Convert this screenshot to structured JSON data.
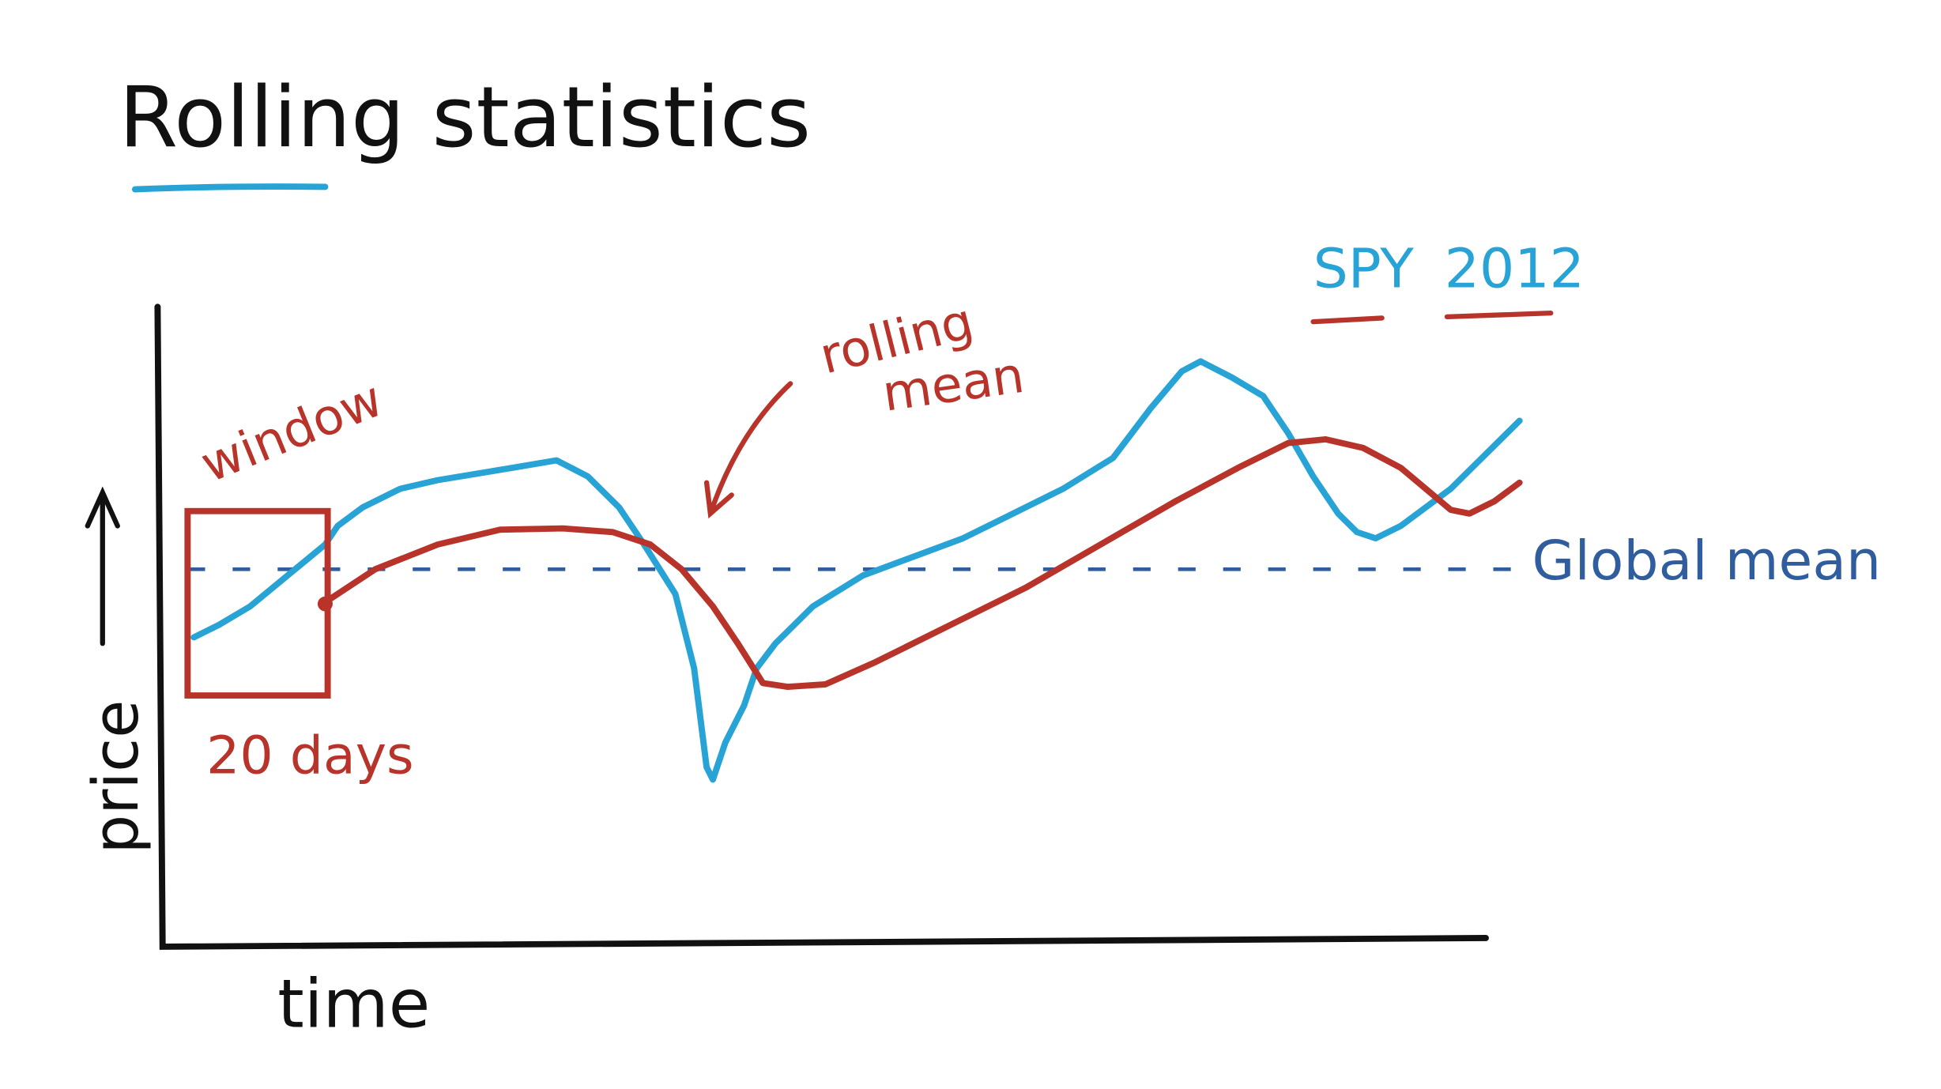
{
  "title": "Rolling statistics",
  "axes": {
    "y_label": "price",
    "x_label": "time"
  },
  "annotations": {
    "window": "window",
    "window_size": "20 days",
    "rolling_mean_line1": "rolling",
    "rolling_mean_line2": "mean",
    "global_mean": "Global mean",
    "series_year_ticker": "SPY",
    "series_year": "2012"
  }
}
